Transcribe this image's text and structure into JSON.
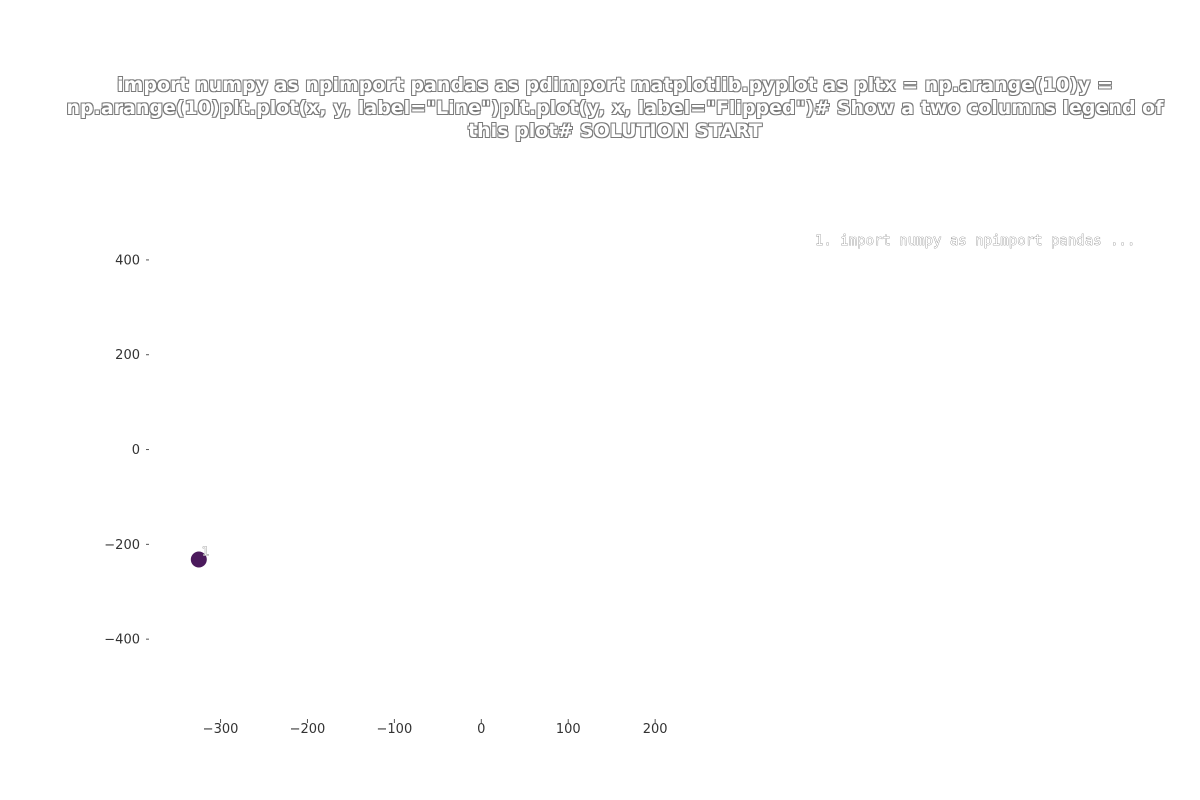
{
  "chart_data": {
    "type": "scatter",
    "title": "import numpy as npimport pandas as pdimport matplotlib.pyplot as pltx = np.arange(10)y = np.arange(10)plt.plot(x, y, label=\"Line\")plt.plot(y, x, label=\"Flipped\")# Show a two columns legend of this plot# SOLUTION START",
    "xlabel": "",
    "ylabel": "",
    "xlim": [
      -380,
      270
    ],
    "ylim": [
      -560,
      480
    ],
    "x_ticks": [
      -300,
      -200,
      -100,
      0,
      100,
      200
    ],
    "x_tick_labels": [
      "−300",
      "−200",
      "−100",
      "0",
      "100",
      "200"
    ],
    "y_ticks": [
      400,
      200,
      0,
      -200,
      -400
    ],
    "y_tick_labels": [
      "400",
      "200",
      "0",
      "−200",
      "−400"
    ],
    "grid": false,
    "legend_placement": "top-right",
    "legend": [
      "1. import numpy as npimport pandas ..."
    ],
    "points": [
      {
        "x": -325,
        "y": -232,
        "label": "1",
        "color": "#4b1a5c"
      }
    ]
  }
}
